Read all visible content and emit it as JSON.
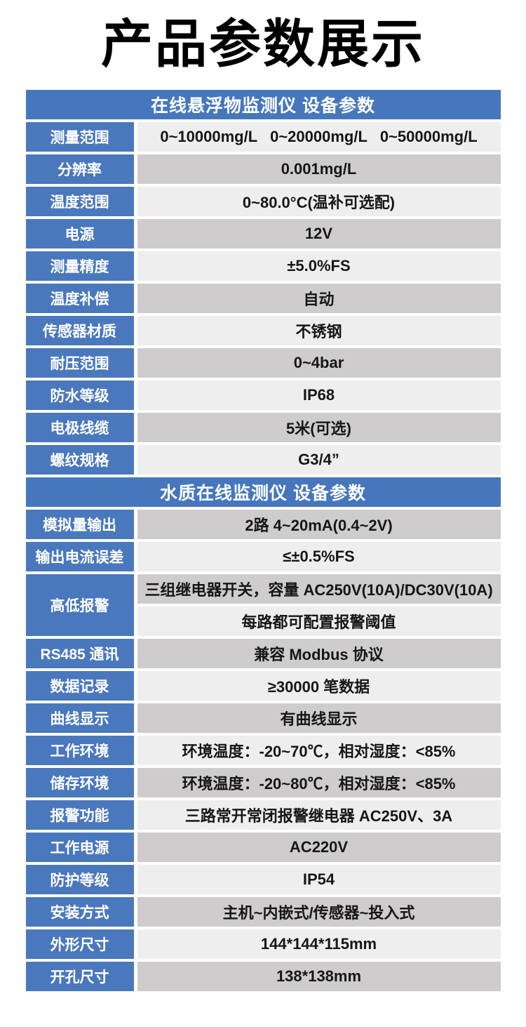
{
  "page": {
    "title": "产品参数展示"
  },
  "colors": {
    "header_bg": "#4677bc",
    "label_bg": "#4a78bd",
    "row_light_bg": "#efeeee",
    "row_dark_bg": "#cecccc",
    "header_text": "#ffffff",
    "label_text": "#ffffff",
    "value_text": "#161616",
    "title_text": "#000000",
    "page_bg": "#ffffff"
  },
  "table": {
    "sections": [
      {
        "header": "在线悬浮物监测仪 设备参数",
        "rows": [
          {
            "label": "测量范围",
            "values": [
              {
                "text": "0~10000mg/L   0~20000mg/L   0~50000mg/L",
                "shade": "light"
              }
            ]
          },
          {
            "label": "分辨率",
            "values": [
              {
                "text": "0.001mg/L",
                "shade": "dark"
              }
            ]
          },
          {
            "label": "温度范围",
            "values": [
              {
                "text": "0~80.0°C(温补可选配)",
                "shade": "light"
              }
            ]
          },
          {
            "label": "电源",
            "values": [
              {
                "text": "12V",
                "shade": "dark"
              }
            ]
          },
          {
            "label": "测量精度",
            "values": [
              {
                "text": "±5.0%FS",
                "shade": "light"
              }
            ]
          },
          {
            "label": "温度补偿",
            "values": [
              {
                "text": "自动",
                "shade": "dark"
              }
            ]
          },
          {
            "label": "传感器材质",
            "values": [
              {
                "text": "不锈钢",
                "shade": "light"
              }
            ]
          },
          {
            "label": "耐压范围",
            "values": [
              {
                "text": "0~4bar",
                "shade": "dark"
              }
            ]
          },
          {
            "label": "防水等级",
            "values": [
              {
                "text": "IP68",
                "shade": "light"
              }
            ]
          },
          {
            "label": "电极线缆",
            "values": [
              {
                "text": "5米(可选)",
                "shade": "dark"
              }
            ]
          },
          {
            "label": "螺纹规格",
            "values": [
              {
                "text": "G3/4”",
                "shade": "light"
              }
            ]
          }
        ]
      },
      {
        "header": "水质在线监测仪 设备参数",
        "rows": [
          {
            "label": "模拟量输出",
            "values": [
              {
                "text": "2路 4~20mA(0.4~2V)",
                "shade": "dark"
              }
            ]
          },
          {
            "label": "输出电流误差",
            "values": [
              {
                "text": "≤±0.5%FS",
                "shade": "light"
              }
            ]
          },
          {
            "label": "高低报警",
            "values": [
              {
                "text": "三组继电器开关，容量 AC250V(10A)/DC30V(10A)",
                "shade": "dark"
              },
              {
                "text": "每路都可配置报警阈值",
                "shade": "light"
              }
            ]
          },
          {
            "label": "RS485 通讯",
            "values": [
              {
                "text": "兼容 Modbus 协议",
                "shade": "dark"
              }
            ]
          },
          {
            "label": "数据记录",
            "values": [
              {
                "text": "≥30000 笔数据",
                "shade": "light"
              }
            ]
          },
          {
            "label": "曲线显示",
            "values": [
              {
                "text": "有曲线显示",
                "shade": "dark"
              }
            ]
          },
          {
            "label": "工作环境",
            "values": [
              {
                "text": "环境温度：-20~70℃，相对湿度：<85%",
                "shade": "light"
              }
            ]
          },
          {
            "label": "储存环境",
            "values": [
              {
                "text": "环境温度：-20~80℃，相对湿度：<85%",
                "shade": "dark"
              }
            ]
          },
          {
            "label": "报警功能",
            "values": [
              {
                "text": "三路常开常闭报警继电器 AC250V、3A",
                "shade": "light"
              }
            ]
          },
          {
            "label": "工作电源",
            "values": [
              {
                "text": "AC220V",
                "shade": "dark"
              }
            ]
          },
          {
            "label": "防护等级",
            "values": [
              {
                "text": "IP54",
                "shade": "light"
              }
            ]
          },
          {
            "label": "安装方式",
            "values": [
              {
                "text": "主机~内嵌式/传感器~投入式",
                "shade": "dark"
              }
            ]
          },
          {
            "label": "外形尺寸",
            "values": [
              {
                "text": "144*144*115mm",
                "shade": "light"
              }
            ]
          },
          {
            "label": "开孔尺寸",
            "values": [
              {
                "text": "138*138mm",
                "shade": "dark"
              }
            ]
          }
        ]
      }
    ]
  }
}
